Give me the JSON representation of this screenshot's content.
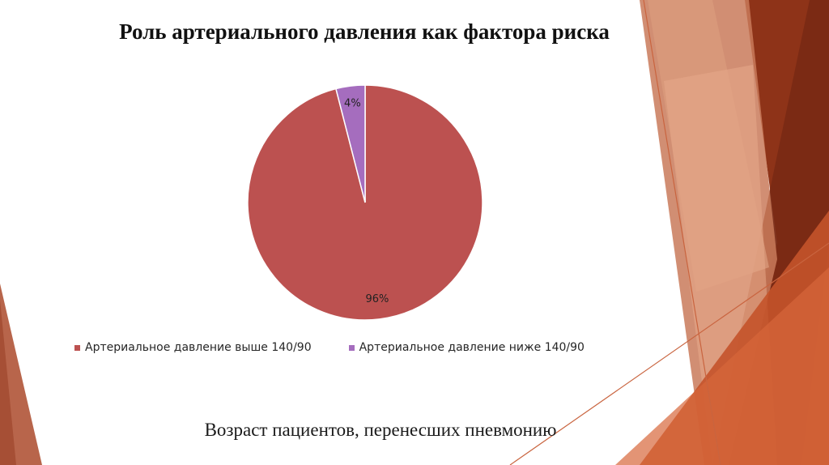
{
  "slide": {
    "title": "Роль артериального давления как фактора риска",
    "subtitle": "Возраст пациентов, перенесших пневмонию"
  },
  "chart_data": {
    "type": "pie",
    "title": "Роль артериального давления как фактора риска",
    "categories": [
      "Артериальное давление выше 140/90",
      "Артериальное давление ниже 140/90"
    ],
    "values": [
      96,
      4
    ],
    "labels": [
      "96%",
      "4%"
    ],
    "colors": [
      "#BC5150",
      "#A56DBE"
    ],
    "legend_position": "bottom"
  },
  "theme": {
    "accent_dark": "#7A2A14",
    "accent_mid": "#C0512C",
    "accent_light": "#E8A07F"
  }
}
